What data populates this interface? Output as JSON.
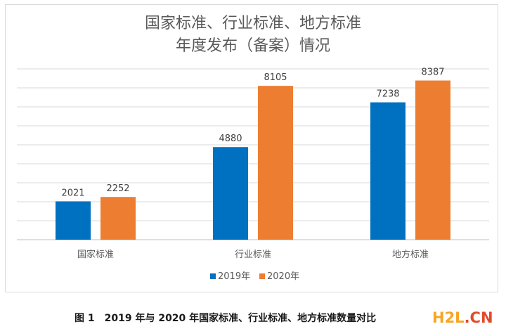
{
  "chart_data": {
    "type": "bar",
    "title_lines": [
      "国家标准、行业标准、地方标准",
      "年度发布（备案）情况"
    ],
    "categories": [
      "国家标准",
      "行业标准",
      "地方标准"
    ],
    "series": [
      {
        "name": "2019年",
        "color": "#0070c0",
        "values": [
          2021,
          4880,
          7238
        ]
      },
      {
        "name": "2020年",
        "color": "#ed7d31",
        "values": [
          2252,
          8105,
          8387
        ]
      }
    ],
    "ylim": [
      0,
      9000
    ],
    "grid": true,
    "legend_position": "bottom"
  },
  "caption": "图 1　2019 年与 2020 年国家标准、行业标准、地方标准数量对比",
  "watermark": {
    "part1": "H2L",
    "part2": ".CN"
  }
}
